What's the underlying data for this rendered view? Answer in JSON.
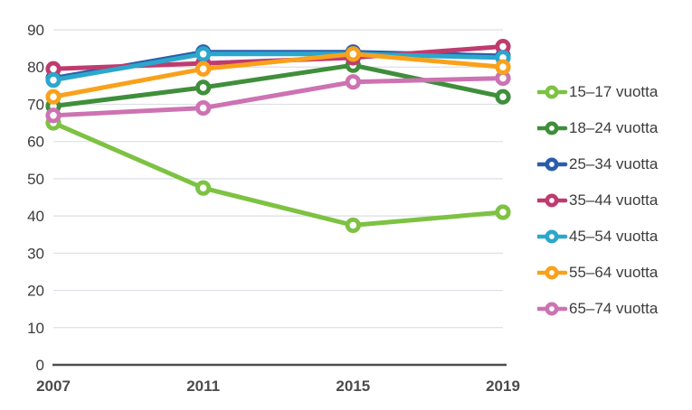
{
  "chart_data": {
    "type": "line",
    "title": "",
    "categories": [
      "2007",
      "2011",
      "2015",
      "2019"
    ],
    "series": [
      {
        "name": "15–17 vuotta",
        "color": "#7dc242",
        "values": [
          65,
          47.5,
          37.5,
          41
        ]
      },
      {
        "name": "18–24 vuotta",
        "color": "#3f8e3b",
        "values": [
          69.5,
          74.5,
          80.5,
          72
        ]
      },
      {
        "name": "25–34 vuotta",
        "color": "#2b5eaa",
        "values": [
          77,
          84,
          84,
          83
        ]
      },
      {
        "name": "35–44 vuotta",
        "color": "#bf3b6f",
        "values": [
          79.5,
          81,
          82.5,
          85.5
        ]
      },
      {
        "name": "45–54 vuotta",
        "color": "#2ca7cc",
        "values": [
          76.5,
          83.5,
          83.5,
          82.5
        ]
      },
      {
        "name": "55–64 vuotta",
        "color": "#f9a11b",
        "values": [
          72,
          79.5,
          83.5,
          80
        ]
      },
      {
        "name": "65–74 vuotta",
        "color": "#cd72b2",
        "values": [
          67,
          69,
          76,
          77
        ]
      }
    ],
    "xlabel": "",
    "ylabel": "",
    "ylim": [
      0,
      90
    ],
    "ytick_step": 10,
    "grid": "horizontal",
    "legend_position": "right",
    "marker": "open-circle",
    "draw_order": [
      2,
      1,
      3,
      0,
      4,
      6,
      5
    ]
  },
  "style": {
    "background": "#ffffff",
    "grid_color": "#dbdfe6",
    "axis_color": "#4d4d4d",
    "tick_label_color": "#3c3c3c",
    "x_label_color": "#4b4b4b",
    "legend_text_color": "#3c3c3c"
  }
}
